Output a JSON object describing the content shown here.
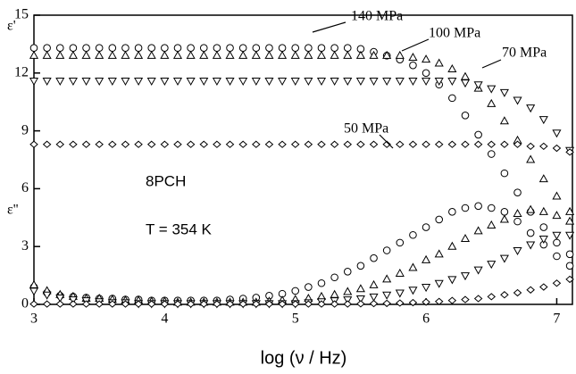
{
  "chart_data": {
    "type": "scatter",
    "xlabel": "log (ν / Hz)",
    "annotations": [
      "ε'",
      "ε''",
      "8PCH",
      "T = 354 K"
    ],
    "xlim": [
      3,
      7.12
    ],
    "xticks": [
      3,
      4,
      5,
      6,
      7
    ],
    "ylim": [
      0,
      15
    ],
    "yticks": [
      0,
      3,
      6,
      9,
      12,
      15
    ],
    "grid": false,
    "x": [
      3.0,
      3.1,
      3.2,
      3.3,
      3.4,
      3.5,
      3.6,
      3.7,
      3.8,
      3.9,
      4.0,
      4.1,
      4.2,
      4.3,
      4.4,
      4.5,
      4.6,
      4.7,
      4.8,
      4.9,
      5.0,
      5.1,
      5.2,
      5.3,
      5.4,
      5.5,
      5.6,
      5.7,
      5.8,
      5.9,
      6.0,
      6.1,
      6.2,
      6.3,
      6.4,
      6.5,
      6.6,
      6.7,
      6.8,
      6.9,
      7.0,
      7.1
    ],
    "series": [
      {
        "name": "140 MPa",
        "marker": "circle",
        "color": "#000000",
        "values": [
          13.3,
          13.3,
          13.3,
          13.3,
          13.3,
          13.3,
          13.3,
          13.3,
          13.3,
          13.3,
          13.3,
          13.3,
          13.3,
          13.3,
          13.3,
          13.3,
          13.3,
          13.3,
          13.3,
          13.3,
          13.3,
          13.3,
          13.3,
          13.3,
          13.3,
          13.25,
          13.1,
          12.9,
          12.7,
          12.4,
          12.0,
          11.4,
          10.7,
          9.8,
          8.8,
          7.8,
          6.8,
          5.8,
          4.8,
          4.0,
          3.2,
          2.6
        ]
      },
      {
        "name": "100 MPa",
        "marker": "triangle",
        "color": "#000000",
        "values": [
          12.9,
          12.9,
          12.9,
          12.9,
          12.9,
          12.9,
          12.9,
          12.9,
          12.9,
          12.9,
          12.9,
          12.9,
          12.9,
          12.9,
          12.9,
          12.9,
          12.9,
          12.9,
          12.9,
          12.9,
          12.9,
          12.9,
          12.9,
          12.9,
          12.9,
          12.9,
          12.9,
          12.9,
          12.9,
          12.8,
          12.7,
          12.5,
          12.2,
          11.8,
          11.2,
          10.4,
          9.5,
          8.5,
          7.5,
          6.5,
          5.6,
          4.8
        ]
      },
      {
        "name": "70 MPa",
        "marker": "triangle-down",
        "color": "#000000",
        "values": [
          11.6,
          11.6,
          11.6,
          11.6,
          11.6,
          11.6,
          11.6,
          11.6,
          11.6,
          11.6,
          11.6,
          11.6,
          11.6,
          11.6,
          11.6,
          11.6,
          11.6,
          11.6,
          11.6,
          11.6,
          11.6,
          11.6,
          11.6,
          11.6,
          11.6,
          11.6,
          11.6,
          11.6,
          11.6,
          11.6,
          11.6,
          11.6,
          11.6,
          11.5,
          11.4,
          11.2,
          11.0,
          10.6,
          10.2,
          9.6,
          8.9,
          8.0
        ]
      },
      {
        "name": "50 MPa",
        "marker": "diamond",
        "color": "#000000",
        "values": [
          8.3,
          8.3,
          8.3,
          8.3,
          8.3,
          8.3,
          8.3,
          8.3,
          8.3,
          8.3,
          8.3,
          8.3,
          8.3,
          8.3,
          8.3,
          8.3,
          8.3,
          8.3,
          8.3,
          8.3,
          8.3,
          8.3,
          8.3,
          8.3,
          8.3,
          8.3,
          8.3,
          8.3,
          8.3,
          8.3,
          8.3,
          8.3,
          8.3,
          8.3,
          8.3,
          8.3,
          8.3,
          8.3,
          8.2,
          8.2,
          8.1,
          7.9
        ]
      },
      {
        "marker": "circle",
        "color": "#000000",
        "values": [
          0.9,
          0.6,
          0.45,
          0.4,
          0.35,
          0.3,
          0.3,
          0.25,
          0.25,
          0.2,
          0.2,
          0.2,
          0.2,
          0.2,
          0.2,
          0.25,
          0.3,
          0.35,
          0.45,
          0.55,
          0.7,
          0.9,
          1.1,
          1.4,
          1.7,
          2.0,
          2.4,
          2.8,
          3.2,
          3.6,
          4.0,
          4.4,
          4.8,
          5.0,
          5.1,
          5.0,
          4.8,
          4.3,
          3.7,
          3.1,
          2.5,
          2.0
        ]
      },
      {
        "marker": "triangle",
        "color": "#000000",
        "values": [
          1.0,
          0.7,
          0.5,
          0.4,
          0.3,
          0.3,
          0.25,
          0.2,
          0.2,
          0.15,
          0.15,
          0.1,
          0.1,
          0.1,
          0.1,
          0.1,
          0.1,
          0.1,
          0.15,
          0.2,
          0.25,
          0.3,
          0.4,
          0.5,
          0.65,
          0.8,
          1.0,
          1.3,
          1.6,
          1.9,
          2.3,
          2.6,
          3.0,
          3.4,
          3.8,
          4.1,
          4.4,
          4.7,
          4.9,
          4.8,
          4.6,
          4.3
        ]
      },
      {
        "marker": "triangle-down",
        "color": "#000000",
        "values": [
          0.7,
          0.5,
          0.35,
          0.25,
          0.2,
          0.15,
          0.1,
          0.1,
          0.05,
          0.05,
          0.05,
          0.05,
          0.05,
          0.05,
          0.05,
          0.05,
          0.05,
          0.05,
          0.05,
          0.05,
          0.05,
          0.1,
          0.15,
          0.2,
          0.25,
          0.3,
          0.4,
          0.5,
          0.6,
          0.75,
          0.9,
          1.1,
          1.3,
          1.5,
          1.8,
          2.1,
          2.4,
          2.8,
          3.1,
          3.4,
          3.6,
          3.6
        ]
      },
      {
        "marker": "diamond",
        "color": "#000000",
        "values": [
          0.02,
          0.02,
          0.02,
          0.02,
          0.02,
          0.02,
          0.02,
          0.02,
          0.02,
          0.02,
          0.02,
          0.02,
          0.02,
          0.02,
          0.02,
          0.02,
          0.02,
          0.02,
          0.02,
          0.02,
          0.02,
          0.02,
          0.02,
          0.02,
          0.02,
          0.03,
          0.04,
          0.05,
          0.07,
          0.09,
          0.12,
          0.15,
          0.2,
          0.25,
          0.3,
          0.4,
          0.5,
          0.6,
          0.75,
          0.9,
          1.1,
          1.3
        ]
      }
    ]
  }
}
